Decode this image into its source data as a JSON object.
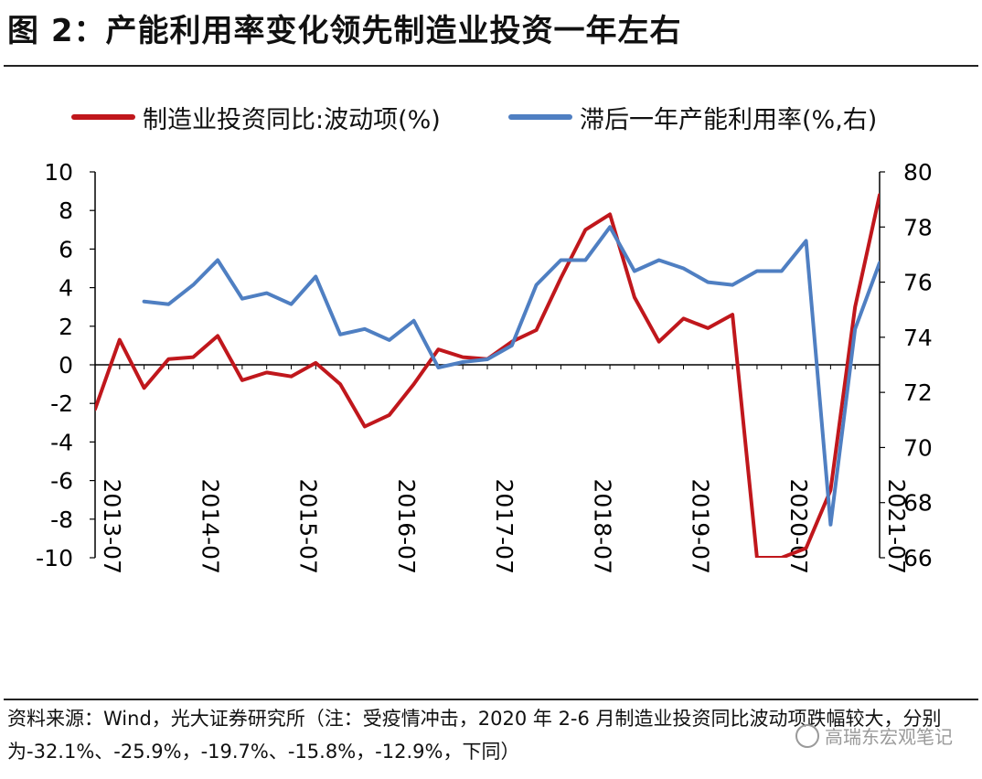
{
  "title": "图 2：产能利用率变化领先制造业投资一年左右",
  "chart_data": {
    "type": "line",
    "title": "",
    "x": [
      "2013-07",
      "2013-10",
      "2014-01",
      "2014-04",
      "2014-07",
      "2014-10",
      "2015-01",
      "2015-04",
      "2015-07",
      "2015-10",
      "2016-01",
      "2016-04",
      "2016-07",
      "2016-10",
      "2017-01",
      "2017-04",
      "2017-07",
      "2017-10",
      "2018-01",
      "2018-04",
      "2018-07",
      "2018-10",
      "2019-01",
      "2019-04",
      "2019-07",
      "2019-10",
      "2020-01",
      "2020-04",
      "2020-07",
      "2020-10",
      "2021-01",
      "2021-04",
      "2021-07"
    ],
    "x_tick_labels": [
      "2013-07",
      "2014-07",
      "2015-07",
      "2016-07",
      "2017-07",
      "2018-07",
      "2019-07",
      "2020-07",
      "2021-07"
    ],
    "y_left_ticks": [
      "10",
      "8",
      "6",
      "4",
      "2",
      "0",
      "-2",
      "-4",
      "-6",
      "-8",
      "-10"
    ],
    "y_right_ticks": [
      "80",
      "78",
      "76",
      "74",
      "72",
      "70",
      "68",
      "66"
    ],
    "ylim_left": [
      -10,
      10
    ],
    "ylim_right": [
      66,
      80
    ],
    "grid": false,
    "legend_position": "top",
    "series": [
      {
        "name": "制造业投资同比:波动项(%)",
        "axis": "left",
        "color": "#c0171c",
        "values": [
          -2.3,
          1.3,
          -1.2,
          0.3,
          0.4,
          1.5,
          -0.8,
          -0.4,
          -0.6,
          0.1,
          -1.0,
          -3.2,
          -2.6,
          -1.0,
          0.8,
          0.4,
          0.3,
          1.2,
          1.8,
          4.5,
          7.0,
          7.8,
          3.5,
          1.2,
          2.4,
          1.9,
          2.6,
          -10,
          -10,
          -9.5,
          -6.5,
          3.0,
          8.8
        ]
      },
      {
        "name": "滞后一年产能利用率(%,右)",
        "axis": "right",
        "color": "#4f7fc2",
        "values": [
          null,
          null,
          75.3,
          75.2,
          75.9,
          76.8,
          75.4,
          75.6,
          75.2,
          76.2,
          74.1,
          74.3,
          73.9,
          74.6,
          72.9,
          73.1,
          73.2,
          73.7,
          75.9,
          76.8,
          76.8,
          78.0,
          76.4,
          76.8,
          76.5,
          76.0,
          75.9,
          76.4,
          76.4,
          77.5,
          67.2,
          74.3,
          76.7
        ]
      }
    ]
  },
  "source_note": "资料来源：Wind，光大证券研究所（注：受疫情冲击，2020 年 2-6 月制造业投资同比波动项跌幅较大，分别为-32.1%、-25.9%，-19.7%、-15.8%，-12.9%，下同）",
  "watermark": "高瑞东宏观笔记"
}
